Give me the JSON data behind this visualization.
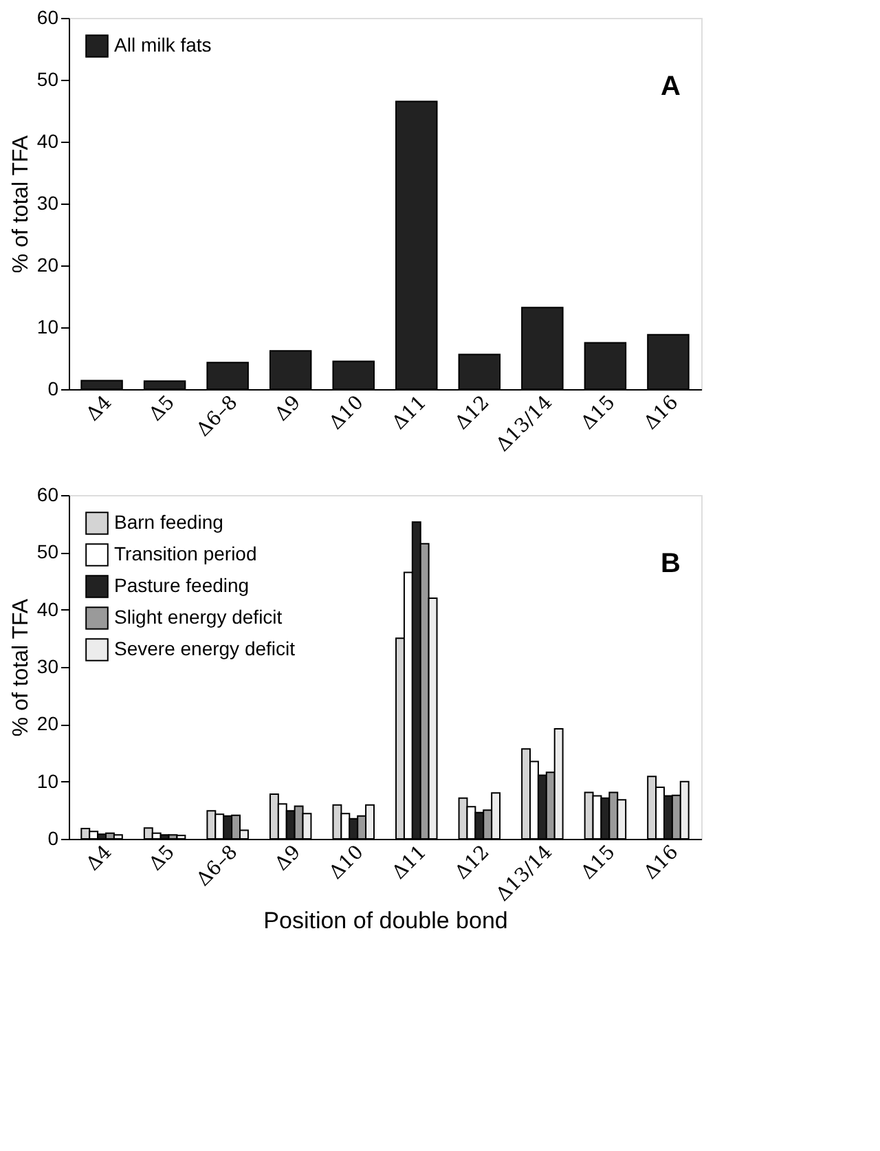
{
  "chart_data": [
    {
      "type": "bar",
      "ylabel": "% of total TFA",
      "categories": [
        "Δ4",
        "Δ5",
        "Δ6–8",
        "Δ9",
        "Δ10",
        "Δ11",
        "Δ12",
        "Δ13/14",
        "Δ15",
        "Δ16"
      ],
      "ylim": [
        0,
        60
      ],
      "yticks": [
        0,
        10,
        20,
        30,
        40,
        50,
        60
      ],
      "grid": false,
      "legend": "top left",
      "annotations": [
        "A"
      ],
      "series": [
        {
          "name": "All milk fats",
          "color": "#222222",
          "values": [
            1.4,
            1.3,
            4.3,
            6.2,
            4.5,
            46.5,
            5.6,
            13.2,
            7.5,
            8.8
          ]
        }
      ]
    },
    {
      "type": "bar",
      "ylabel": "% of total TFA",
      "xlabel": "Position of double bond",
      "categories": [
        "Δ4",
        "Δ5",
        "Δ6–8",
        "Δ9",
        "Δ10",
        "Δ11",
        "Δ12",
        "Δ13/14",
        "Δ15",
        "Δ16"
      ],
      "ylim": [
        0,
        60
      ],
      "yticks": [
        0,
        10,
        20,
        30,
        40,
        50,
        60
      ],
      "grid": false,
      "legend": "top left",
      "annotations": [
        "B"
      ],
      "series": [
        {
          "name": "Barn feeding",
          "color": "#d4d4d4",
          "values": [
            1.8,
            1.9,
            4.9,
            7.8,
            5.9,
            35.0,
            7.1,
            15.7,
            8.1,
            10.9
          ]
        },
        {
          "name": "Transition period",
          "color": "#ffffff",
          "values": [
            1.3,
            1.0,
            4.3,
            6.1,
            4.4,
            46.5,
            5.6,
            13.5,
            7.5,
            9.0
          ]
        },
        {
          "name": "Pasture feeding",
          "color": "#222222",
          "values": [
            0.8,
            0.7,
            4.0,
            4.9,
            3.5,
            55.3,
            4.6,
            11.1,
            7.1,
            7.5
          ]
        },
        {
          "name": "Slight energy deficit",
          "color": "#9a9a9a",
          "values": [
            1.0,
            0.7,
            4.1,
            5.7,
            4.0,
            51.5,
            5.0,
            11.6,
            8.1,
            7.6
          ]
        },
        {
          "name": "Severe energy deficit",
          "color": "#ececec",
          "values": [
            0.7,
            0.6,
            1.5,
            4.4,
            5.9,
            42.0,
            8.0,
            19.2,
            6.8,
            10.0
          ]
        }
      ]
    }
  ]
}
